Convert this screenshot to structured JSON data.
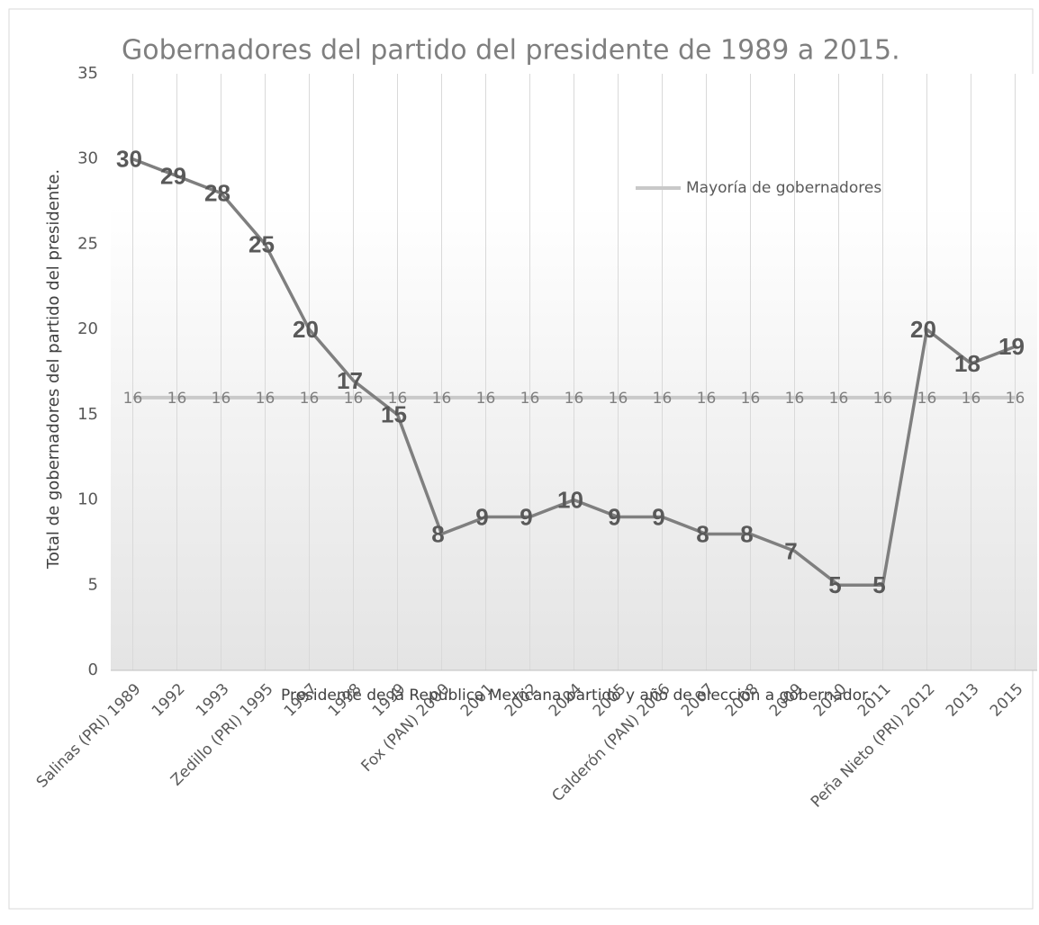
{
  "chart_data": {
    "type": "line",
    "title": "Gobernadores del partido del presidente de 1989 a 2015.",
    "xlabel": "Presidente de la República Mexicana partido y año de elección a gobernador.",
    "ylabel": "Total de gobernadores del partido del presidente.",
    "categories": [
      "Salinas (PRI) 1989",
      "1992",
      "1993",
      "Zedillo (PRI) 1995",
      "1997",
      "1998",
      "1999",
      "Fox (PAN) 2000",
      "2001",
      "2002",
      "2004",
      "2005",
      "Calderón (PAN)  2006",
      "2007",
      "2008",
      "2009",
      "2010",
      "2011",
      "Peña Nieto (PRI)  2012",
      "2013",
      "2015"
    ],
    "series": [
      {
        "color": "#7f7f7f",
        "values": [
          30,
          29,
          28,
          25,
          20,
          17,
          15,
          8,
          9,
          9,
          10,
          9,
          9,
          8,
          8,
          7,
          5,
          5,
          20,
          18,
          19
        ]
      },
      {
        "name": "Mayoría de gobernadores",
        "color": "#c9c9c9",
        "values": [
          16,
          16,
          16,
          16,
          16,
          16,
          16,
          16,
          16,
          16,
          16,
          16,
          16,
          16,
          16,
          16,
          16,
          16,
          16,
          16,
          16
        ]
      }
    ],
    "ylim": [
      0,
      35
    ],
    "yticks": [
      0,
      5,
      10,
      15,
      20,
      25,
      30,
      35
    ],
    "xgrid": true,
    "legend": "upper right"
  }
}
